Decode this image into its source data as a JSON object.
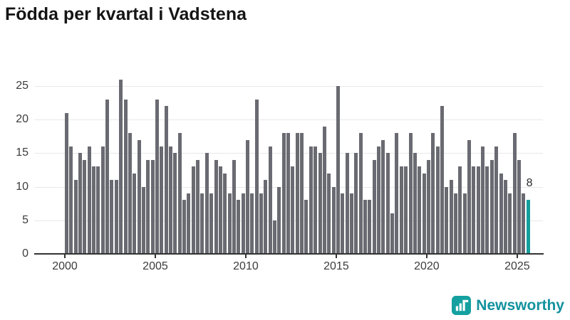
{
  "title": "Födda per kvartal i Vadstena",
  "chart_data": {
    "type": "bar",
    "title": "Födda per kvartal i Vadstena",
    "x_start": "2000-Q1",
    "x_end": "2025-Q3",
    "x_ticks": [
      2000,
      2005,
      2010,
      2015,
      2020,
      2025
    ],
    "y_ticks": [
      0,
      5,
      10,
      15,
      20,
      25
    ],
    "ylim": [
      0,
      26.5
    ],
    "grid": true,
    "legend": "none",
    "bar_color": "#6a6a72",
    "highlight_color": "#149e9c",
    "values": [
      21,
      16,
      11,
      15,
      14,
      16,
      13,
      13,
      16,
      23,
      11,
      11,
      26,
      23,
      18,
      12,
      17,
      10,
      14,
      14,
      23,
      16,
      22,
      16,
      15,
      18,
      8,
      9,
      13,
      14,
      9,
      15,
      9,
      14,
      13,
      12,
      9,
      14,
      8,
      9,
      17,
      9,
      23,
      9,
      11,
      16,
      5,
      10,
      18,
      18,
      13,
      18,
      18,
      8,
      16,
      16,
      15,
      19,
      12,
      10,
      25,
      9,
      15,
      9,
      15,
      18,
      8,
      8,
      14,
      16,
      17,
      15,
      6,
      18,
      13,
      13,
      18,
      15,
      13,
      12,
      14,
      18,
      16,
      22,
      10,
      11,
      9,
      13,
      9,
      17,
      13,
      13,
      16,
      13,
      14,
      16,
      12,
      11,
      9,
      18,
      14,
      9,
      8
    ],
    "highlight": {
      "index": 102,
      "quarter": "2025-Q3",
      "value": 8,
      "label": "8"
    }
  },
  "branding": {
    "name": "Newsworthy",
    "logo_icon": "bar-chart-flag-icon",
    "logo_color": "#14a0a0",
    "text_color": "#13929e"
  }
}
